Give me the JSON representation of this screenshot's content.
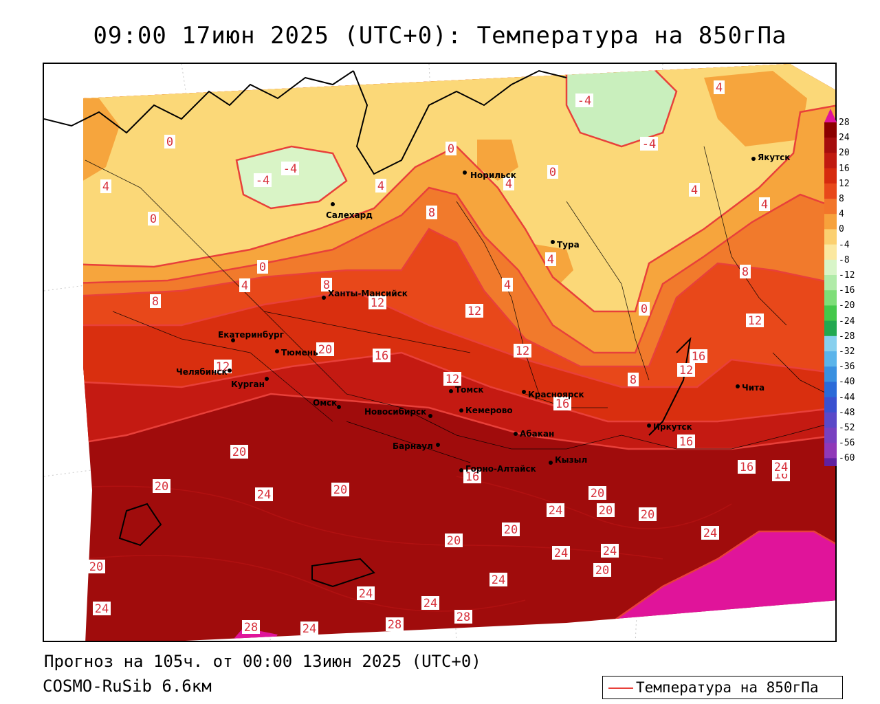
{
  "title": "09:00 17июн 2025 (UTC+0): Температура на 850гПа",
  "forecast_text": "Прогноз на 105ч. от 00:00 13июн 2025 (UTC+0)",
  "model_text": "COSMO-RuSib 6.6км",
  "legend": {
    "label": "Температура на 850гПа",
    "line_color": "#e8403a"
  },
  "colorbar": {
    "ticks": [
      "28",
      "24",
      "20",
      "16",
      "12",
      "8",
      "4",
      "0",
      "-4",
      "-8",
      "-12",
      "-16",
      "-20",
      "-24",
      "-28",
      "-32",
      "-36",
      "-40",
      "-44",
      "-48",
      "-52",
      "-56",
      "-60"
    ],
    "colors": [
      "#8b0000",
      "#a50d0d",
      "#c01a10",
      "#d62a0e",
      "#e8481a",
      "#f2752a",
      "#f7a23c",
      "#fbd070",
      "#fbe8a0",
      "#d8f5c8",
      "#b0eba8",
      "#7ede78",
      "#44c84a",
      "#22a850",
      "#88d0ee",
      "#5ab4ea",
      "#3a90e0",
      "#2a6ad8",
      "#3a50d0",
      "#5a48c8",
      "#7840c0",
      "#9038b8",
      "#6020a0"
    ]
  },
  "cities": [
    {
      "name": "Норильск"
    },
    {
      "name": "Якутск"
    },
    {
      "name": "Салехард"
    },
    {
      "name": "Тура"
    },
    {
      "name": "Ханты-Мансийск"
    },
    {
      "name": "Екатеринбург"
    },
    {
      "name": "Тюмень"
    },
    {
      "name": "Челябинск"
    },
    {
      "name": "Курган"
    },
    {
      "name": "Омск"
    },
    {
      "name": "Новосибирск"
    },
    {
      "name": "Томск"
    },
    {
      "name": "Кемерово"
    },
    {
      "name": "Красноярск"
    },
    {
      "name": "Барнаул"
    },
    {
      "name": "Абакан"
    },
    {
      "name": "Горно-Алтайск"
    },
    {
      "name": "Кызыл"
    },
    {
      "name": "Иркутск"
    },
    {
      "name": "Чита"
    }
  ],
  "contour_labels": [
    "-4",
    "-4",
    "-4",
    "-4",
    "0",
    "0",
    "0",
    "0",
    "0",
    "0",
    "4",
    "4",
    "4",
    "4",
    "4",
    "4",
    "4",
    "4",
    "4",
    "8",
    "8",
    "8",
    "8",
    "8",
    "12",
    "12",
    "12",
    "12",
    "12",
    "12",
    "12",
    "16",
    "16",
    "16",
    "16",
    "16",
    "16",
    "16",
    "20",
    "20",
    "20",
    "20",
    "20",
    "20",
    "20",
    "20",
    "20",
    "20",
    "20",
    "24",
    "24",
    "24",
    "24",
    "24",
    "24",
    "24",
    "24",
    "24",
    "24",
    "24",
    "28",
    "28",
    "28"
  ]
}
